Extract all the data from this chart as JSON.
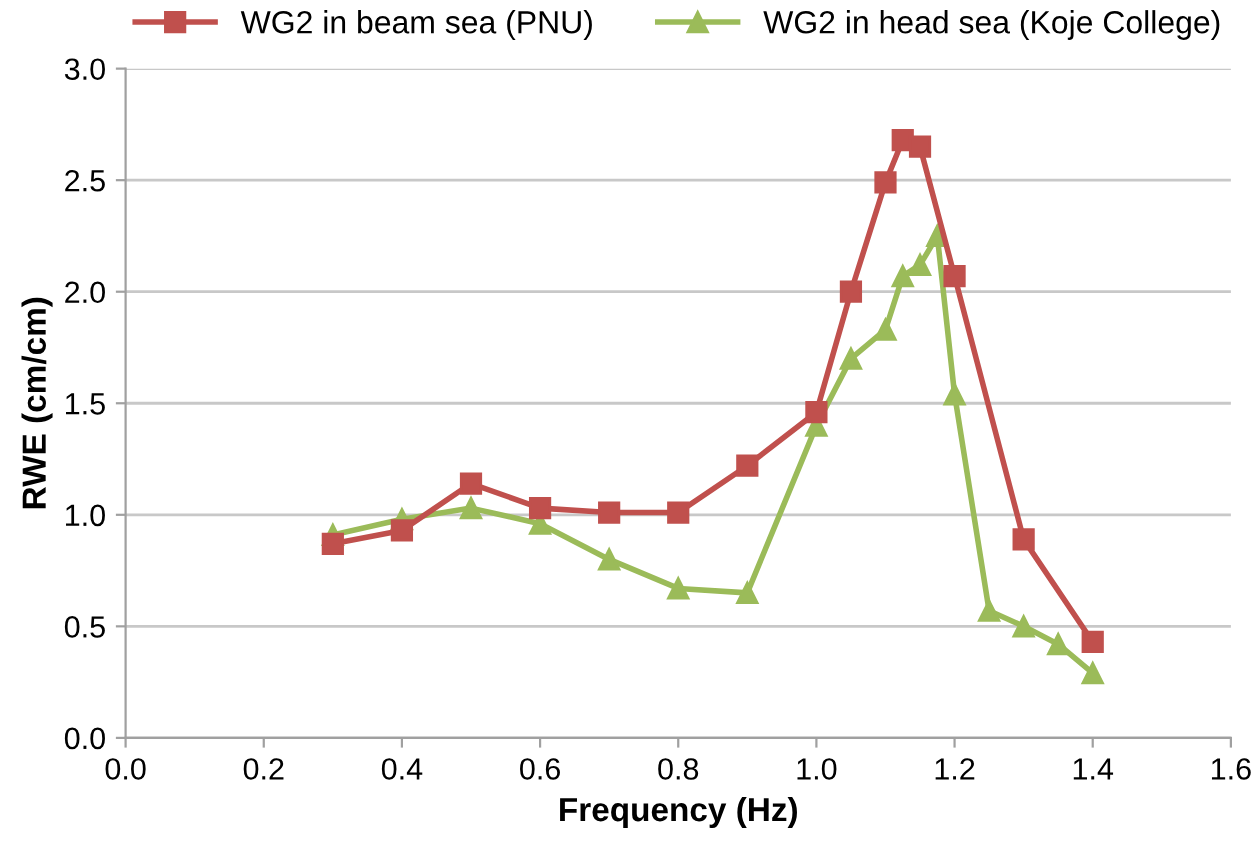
{
  "chart_data": {
    "type": "line",
    "xlabel": "Frequency (Hz)",
    "ylabel": "RWE (cm/cm)",
    "xlim": [
      0,
      1.6
    ],
    "xticks": [
      {
        "value": 0,
        "label": "0.0"
      },
      {
        "value": 0.2,
        "label": "0.2"
      },
      {
        "value": 0.4,
        "label": "0.4"
      },
      {
        "value": 0.6,
        "label": "0.6"
      },
      {
        "value": 0.8,
        "label": "0.8"
      },
      {
        "value": 1.0,
        "label": "1.0"
      },
      {
        "value": 1.2,
        "label": "1.2"
      },
      {
        "value": 1.4,
        "label": "1.4"
      },
      {
        "value": 1.6,
        "label": "1.6"
      }
    ],
    "ylim": [
      0,
      3
    ],
    "yticks": [
      {
        "value": 0,
        "label": "0.0"
      },
      {
        "value": 0.5,
        "label": "0.5"
      },
      {
        "value": 1.0,
        "label": "1.0"
      },
      {
        "value": 1.5,
        "label": "1.5"
      },
      {
        "value": 2.0,
        "label": "2.0"
      },
      {
        "value": 2.5,
        "label": "2.5"
      },
      {
        "value": 3.0,
        "label": "3.0"
      }
    ],
    "grid": "y",
    "legend": "top",
    "line_style": "solid",
    "series": [
      {
        "name": "WG2 in beam sea (PNU)",
        "color": "#c0504d",
        "marker": "square",
        "x": [
          0.3,
          0.4,
          0.5,
          0.6,
          0.7,
          0.8,
          0.9,
          1.0,
          1.05,
          1.1,
          1.125,
          1.15,
          1.2,
          1.3,
          1.4
        ],
        "values": [
          0.87,
          0.93,
          1.14,
          1.03,
          1.01,
          1.01,
          1.22,
          1.46,
          2.0,
          2.49,
          2.68,
          2.65,
          2.07,
          0.89,
          0.43
        ]
      },
      {
        "name": "WG2 in head sea (Koje College)",
        "color": "#9bbb59",
        "marker": "triangle",
        "x": [
          0.3,
          0.4,
          0.5,
          0.6,
          0.7,
          0.8,
          0.9,
          1.0,
          1.05,
          1.1,
          1.125,
          1.15,
          1.175,
          1.2,
          1.25,
          1.3,
          1.35,
          1.4
        ],
        "values": [
          0.91,
          0.98,
          1.03,
          0.96,
          0.8,
          0.67,
          0.65,
          1.4,
          1.7,
          1.83,
          2.07,
          2.12,
          2.25,
          1.54,
          0.57,
          0.5,
          0.42,
          0.29
        ]
      }
    ]
  }
}
